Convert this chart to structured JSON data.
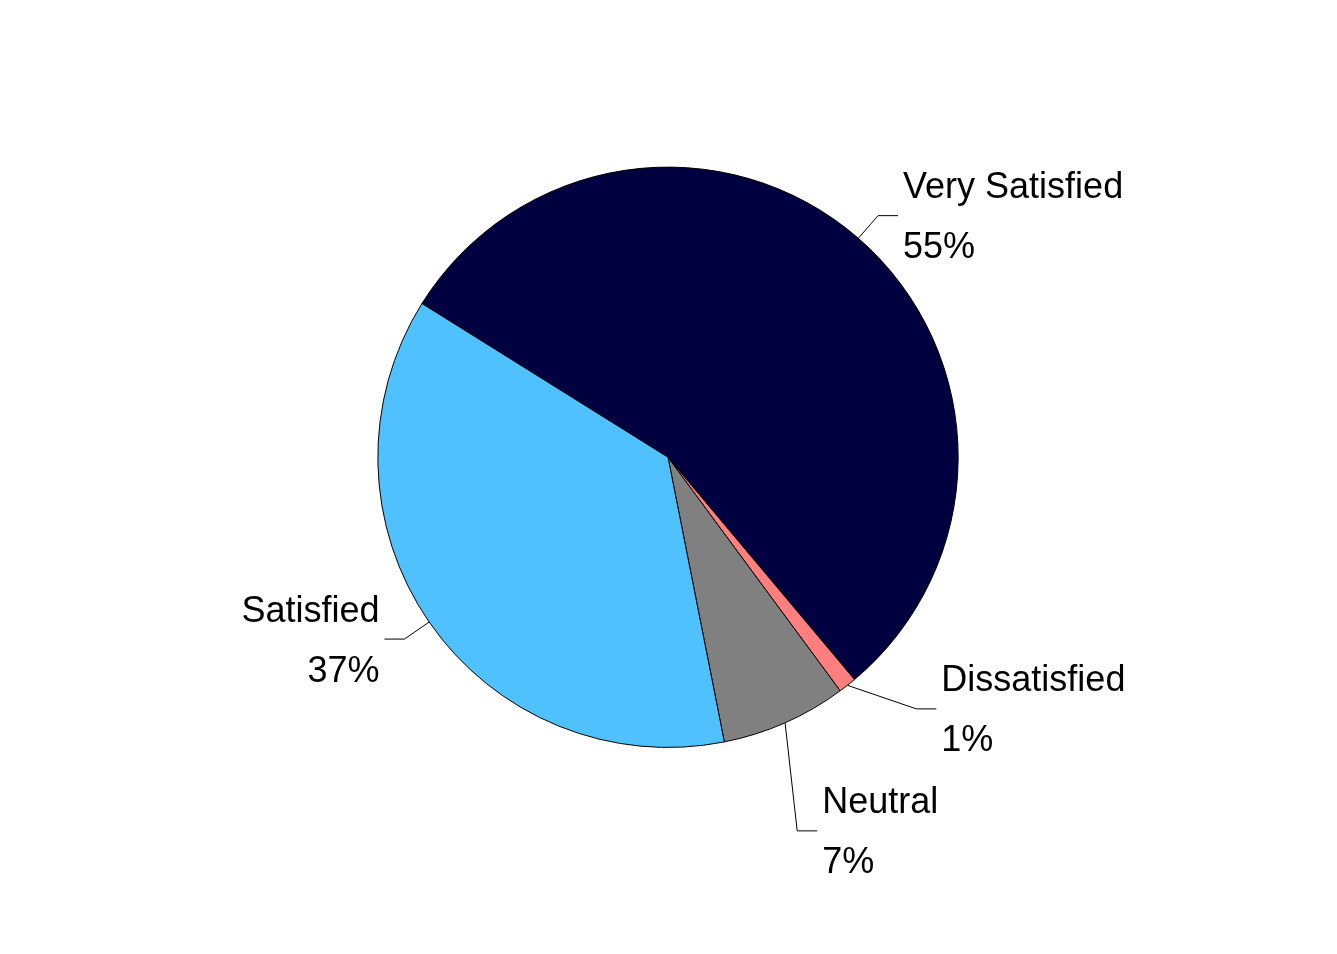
{
  "chart_data": {
    "type": "pie",
    "categories": [
      "Very Satisfied",
      "Dissatisfied",
      "Neutral",
      "Satisfied"
    ],
    "values": [
      55,
      1,
      7,
      37
    ],
    "value_labels": [
      "55%",
      "1%",
      "7%",
      "37%"
    ],
    "colors": [
      "#000040",
      "#ff7f7f",
      "#808080",
      "#4fc1ff"
    ],
    "legend": false
  }
}
